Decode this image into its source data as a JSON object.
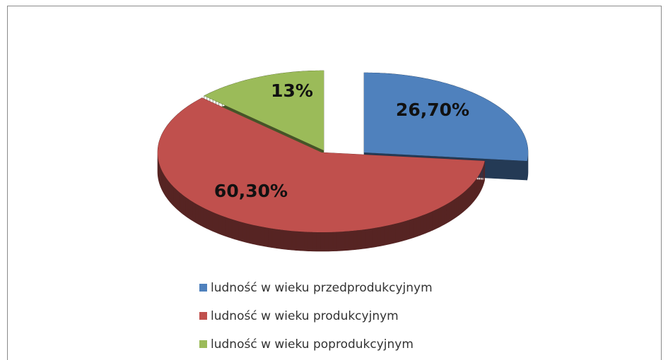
{
  "chart_data": {
    "type": "pie",
    "categories": [
      "ludność w wieku przedprodukcyjnym",
      "ludność w wieku produkcyjnym",
      "ludność w wieku poprodukcyjnym"
    ],
    "values": [
      26.7,
      60.3,
      13
    ],
    "value_labels": [
      "26,70%",
      "60,30%",
      "13%"
    ],
    "colors": [
      "#4f81bd",
      "#c0504d",
      "#9bbb59"
    ]
  }
}
